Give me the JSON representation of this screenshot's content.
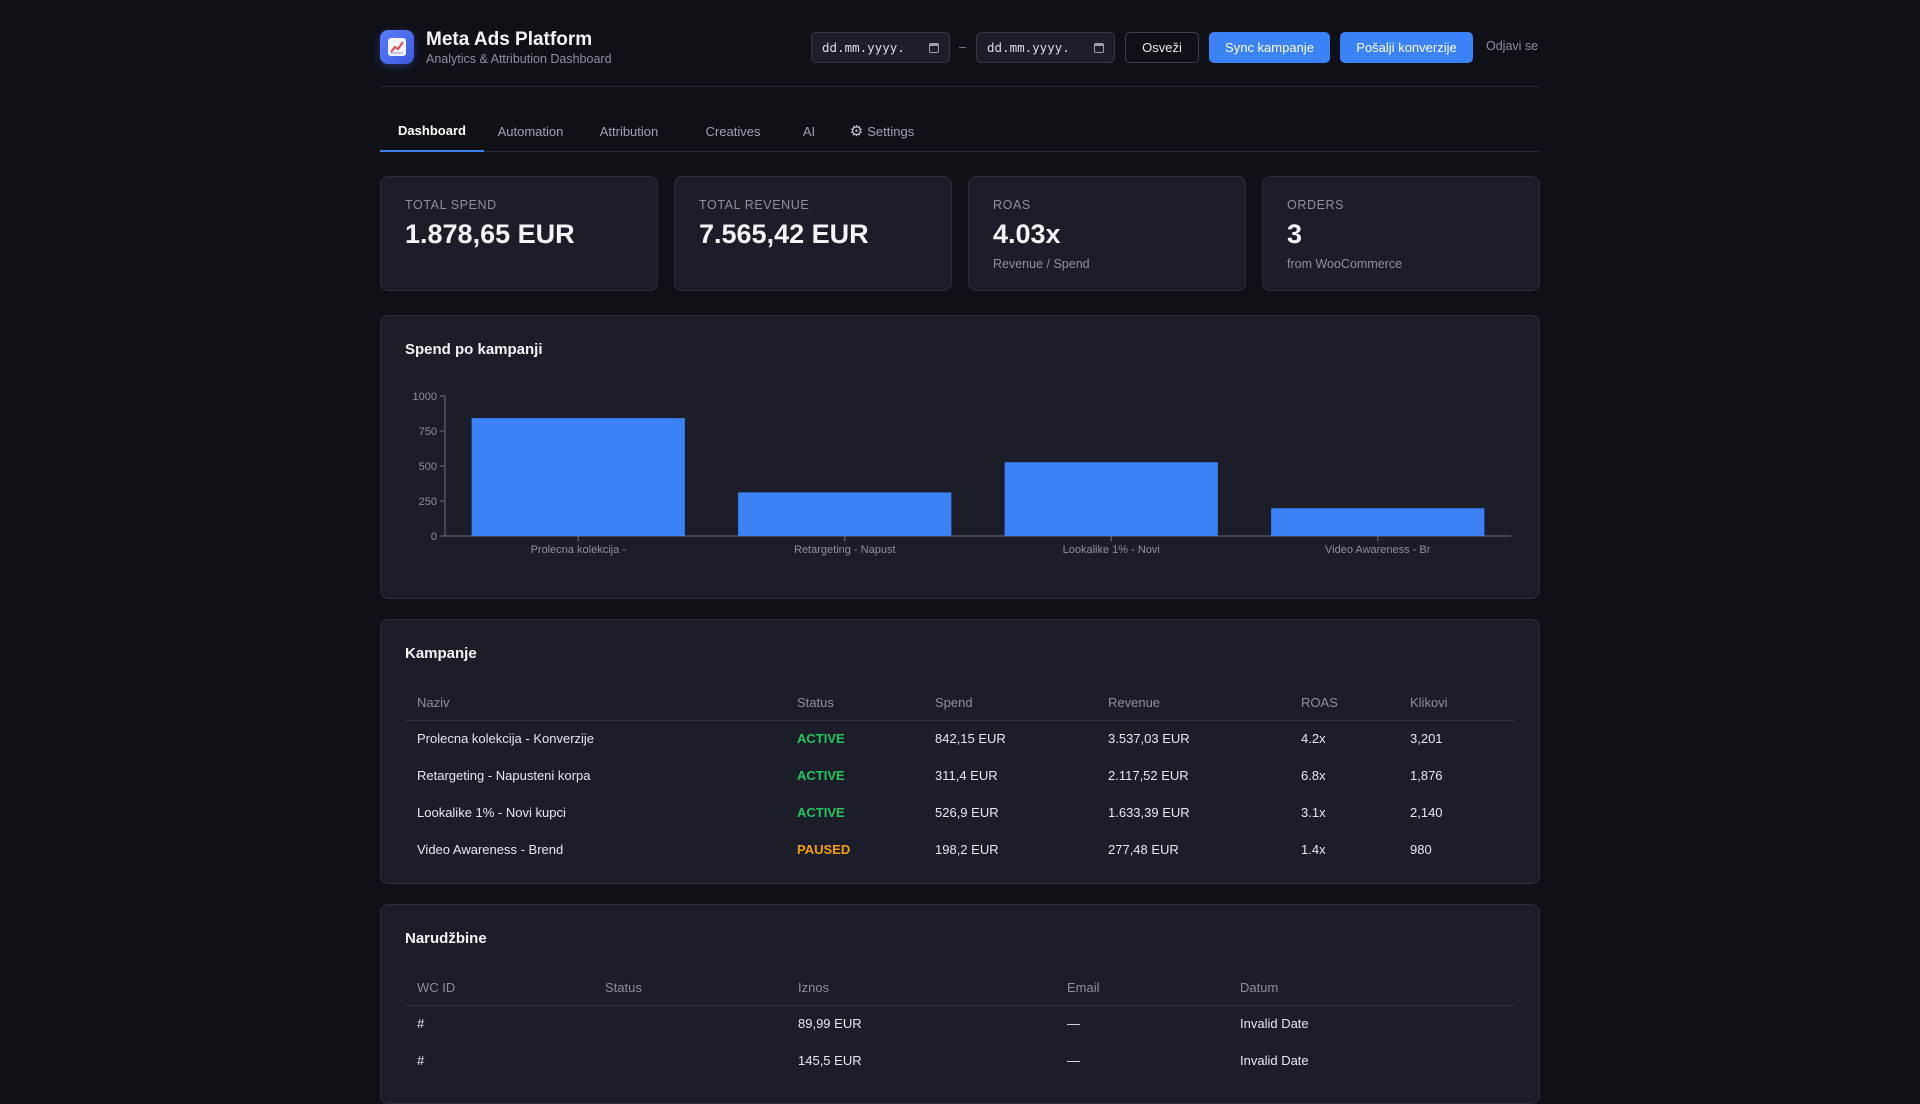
{
  "app": {
    "title": "Meta Ads Platform",
    "subtitle": "Analytics & Attribution Dashboard",
    "logo_icon": "chart-trend-icon"
  },
  "header": {
    "date_from_placeholder": "dd.mm.yyyy.",
    "date_to_placeholder": "dd.mm.yyyy.",
    "date_separator": "–",
    "refresh_label": "Osveži",
    "sync_label": "Sync kampanje",
    "send_conversions_label": "Pošalji konverzije",
    "logout_label": "Odjavi se"
  },
  "tabs": [
    {
      "label": "Dashboard",
      "active": true
    },
    {
      "label": "Automation",
      "active": false
    },
    {
      "label": "Attribution",
      "active": false
    },
    {
      "label": "Creatives",
      "active": false
    },
    {
      "label": "AI",
      "active": false
    },
    {
      "label": "Settings",
      "active": false,
      "icon": "gear-icon"
    }
  ],
  "stats": [
    {
      "label": "TOTAL SPEND",
      "value": "1.878,65 EUR",
      "sub": ""
    },
    {
      "label": "TOTAL REVENUE",
      "value": "7.565,42 EUR",
      "sub": ""
    },
    {
      "label": "ROAS",
      "value": "4.03x",
      "sub": "Revenue / Spend"
    },
    {
      "label": "ORDERS",
      "value": "3",
      "sub": "from WooCommerce"
    }
  ],
  "chart_section": {
    "title": "Spend po kampanji"
  },
  "chart_data": {
    "type": "bar",
    "title": "Spend po kampanji",
    "categories": [
      "Prolecna kolekcija -",
      "Retargeting - Napust",
      "Lookalike 1% - Novi",
      "Video Awareness - Br"
    ],
    "values": [
      842.15,
      311.4,
      526.9,
      198.2
    ],
    "yticks": [
      0,
      250,
      500,
      750,
      1000
    ],
    "ylim": [
      0,
      1000
    ],
    "xlabel": "",
    "ylabel": "",
    "grid": false,
    "bar_color": "#3b82f6"
  },
  "campaigns": {
    "title": "Kampanje",
    "columns": [
      "Naziv",
      "Status",
      "Spend",
      "Revenue",
      "ROAS",
      "Klikovi"
    ],
    "rows": [
      {
        "name": "Prolecna kolekcija - Konverzije",
        "status": "ACTIVE",
        "spend": "842,15 EUR",
        "revenue": "3.537,03 EUR",
        "roas": "4.2x",
        "clicks": "3,201"
      },
      {
        "name": "Retargeting - Napusteni korpa",
        "status": "ACTIVE",
        "spend": "311,4 EUR",
        "revenue": "2.117,52 EUR",
        "roas": "6.8x",
        "clicks": "1,876"
      },
      {
        "name": "Lookalike 1% - Novi kupci",
        "status": "ACTIVE",
        "spend": "526,9 EUR",
        "revenue": "1.633,39 EUR",
        "roas": "3.1x",
        "clicks": "2,140"
      },
      {
        "name": "Video Awareness - Brend",
        "status": "PAUSED",
        "spend": "198,2 EUR",
        "revenue": "277,48 EUR",
        "roas": "1.4x",
        "clicks": "980"
      }
    ]
  },
  "orders": {
    "title": "Narudžbine",
    "columns": [
      "WC ID",
      "Status",
      "Iznos",
      "Email",
      "Datum"
    ],
    "rows": [
      {
        "id": "#",
        "status": "",
        "amount": "89,99 EUR",
        "email": "—",
        "date": "Invalid Date"
      },
      {
        "id": "#",
        "status": "",
        "amount": "145,5 EUR",
        "email": "—",
        "date": "Invalid Date"
      }
    ]
  },
  "colors": {
    "accent": "#3b82f6",
    "active": "#22c55e",
    "paused": "#f59e0b",
    "background": "#0f1117",
    "card": "#1b1e29"
  }
}
